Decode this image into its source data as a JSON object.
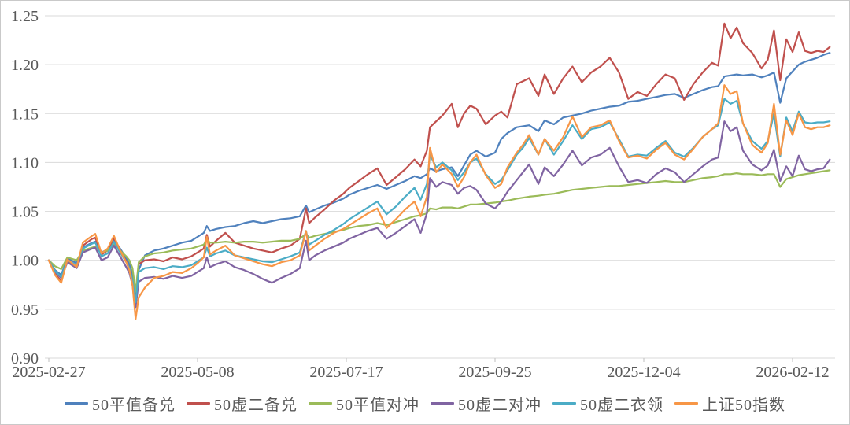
{
  "chart_data": {
    "type": "line",
    "title": "",
    "xlabel": "",
    "ylabel": "",
    "grid": true,
    "legend_position": "bottom",
    "ylim": [
      0.9,
      1.25
    ],
    "y_ticks": [
      "0.90",
      "0.95",
      "1.00",
      "1.05",
      "1.10",
      "1.15",
      "1.20",
      "1.25"
    ],
    "x_domain_days": [
      0,
      252
    ],
    "x_tick_days": [
      0,
      48,
      96,
      144,
      192,
      240
    ],
    "x_tick_labels": [
      "2025-02-27",
      "2025-05-08",
      "2025-07-17",
      "2025-09-25",
      "2025-12-04",
      "2026-02-12"
    ],
    "days": [
      0,
      2,
      4,
      6,
      9,
      11,
      14,
      15,
      17,
      19,
      21,
      23,
      25,
      26,
      27,
      28,
      29,
      31,
      34,
      37,
      40,
      43,
      46,
      48,
      50,
      51,
      52,
      54,
      57,
      60,
      63,
      66,
      69,
      72,
      75,
      78,
      81,
      83,
      84,
      86,
      89,
      92,
      95,
      97,
      100,
      103,
      106,
      109,
      112,
      115,
      118,
      120,
      122,
      123,
      125,
      127,
      130,
      132,
      134,
      136,
      138,
      141,
      144,
      146,
      148,
      151,
      153,
      155,
      158,
      160,
      163,
      166,
      169,
      172,
      175,
      178,
      181,
      184,
      187,
      190,
      193,
      196,
      199,
      202,
      205,
      208,
      211,
      214,
      216,
      218,
      220,
      222,
      224,
      227,
      230,
      232,
      234,
      236,
      238,
      240,
      242,
      244,
      246,
      248,
      250,
      252
    ],
    "series": [
      {
        "name": "50平值备兑",
        "color": "#4F81BD",
        "values": [
          1.0,
          0.99,
          0.985,
          1.002,
          0.997,
          1.013,
          1.018,
          1.019,
          1.008,
          1.011,
          1.021,
          1.012,
          1.002,
          0.996,
          0.985,
          0.962,
          0.99,
          1.005,
          1.01,
          1.012,
          1.015,
          1.018,
          1.02,
          1.024,
          1.028,
          1.035,
          1.03,
          1.032,
          1.034,
          1.035,
          1.038,
          1.04,
          1.038,
          1.04,
          1.042,
          1.043,
          1.045,
          1.056,
          1.049,
          1.052,
          1.056,
          1.059,
          1.063,
          1.067,
          1.071,
          1.074,
          1.077,
          1.073,
          1.077,
          1.081,
          1.086,
          1.084,
          1.088,
          1.094,
          1.091,
          1.093,
          1.095,
          1.086,
          1.097,
          1.108,
          1.112,
          1.106,
          1.11,
          1.124,
          1.13,
          1.136,
          1.137,
          1.138,
          1.132,
          1.143,
          1.139,
          1.146,
          1.148,
          1.15,
          1.153,
          1.155,
          1.157,
          1.158,
          1.162,
          1.163,
          1.165,
          1.167,
          1.169,
          1.17,
          1.166,
          1.17,
          1.174,
          1.177,
          1.178,
          1.188,
          1.189,
          1.19,
          1.189,
          1.19,
          1.187,
          1.189,
          1.192,
          1.161,
          1.186,
          1.193,
          1.2,
          1.203,
          1.205,
          1.207,
          1.21,
          1.212
        ]
      },
      {
        "name": "50虚二备兑",
        "color": "#C0504D",
        "values": [
          1.0,
          0.986,
          0.979,
          1.0,
          0.993,
          1.015,
          1.022,
          1.023,
          1.006,
          1.01,
          1.023,
          1.01,
          0.999,
          0.992,
          0.98,
          0.956,
          0.996,
          1.0,
          1.001,
          0.999,
          1.003,
          1.001,
          1.004,
          1.008,
          1.012,
          1.026,
          1.014,
          1.02,
          1.028,
          1.018,
          1.015,
          1.012,
          1.01,
          1.008,
          1.012,
          1.015,
          1.022,
          1.053,
          1.038,
          1.044,
          1.052,
          1.061,
          1.068,
          1.074,
          1.081,
          1.088,
          1.094,
          1.077,
          1.085,
          1.093,
          1.103,
          1.096,
          1.112,
          1.136,
          1.142,
          1.148,
          1.16,
          1.136,
          1.15,
          1.158,
          1.155,
          1.139,
          1.148,
          1.152,
          1.146,
          1.18,
          1.183,
          1.186,
          1.168,
          1.19,
          1.17,
          1.186,
          1.198,
          1.182,
          1.192,
          1.198,
          1.207,
          1.192,
          1.165,
          1.172,
          1.168,
          1.18,
          1.19,
          1.186,
          1.164,
          1.18,
          1.192,
          1.202,
          1.199,
          1.242,
          1.227,
          1.238,
          1.222,
          1.212,
          1.196,
          1.205,
          1.235,
          1.184,
          1.226,
          1.213,
          1.233,
          1.214,
          1.212,
          1.214,
          1.213,
          1.218
        ]
      },
      {
        "name": "50平值对冲",
        "color": "#9BBB59",
        "values": [
          1.0,
          0.994,
          0.991,
          1.003,
          1.0,
          1.01,
          1.013,
          1.014,
          1.008,
          1.01,
          1.016,
          1.01,
          1.004,
          1.0,
          0.992,
          0.968,
          0.998,
          1.004,
          1.007,
          1.008,
          1.01,
          1.011,
          1.012,
          1.014,
          1.016,
          1.021,
          1.018,
          1.018,
          1.019,
          1.018,
          1.019,
          1.019,
          1.018,
          1.019,
          1.02,
          1.02,
          1.022,
          1.027,
          1.023,
          1.025,
          1.027,
          1.029,
          1.031,
          1.033,
          1.035,
          1.036,
          1.038,
          1.036,
          1.039,
          1.042,
          1.045,
          1.046,
          1.048,
          1.053,
          1.052,
          1.054,
          1.054,
          1.053,
          1.055,
          1.057,
          1.057,
          1.058,
          1.059,
          1.06,
          1.061,
          1.063,
          1.064,
          1.065,
          1.066,
          1.067,
          1.068,
          1.07,
          1.072,
          1.073,
          1.074,
          1.075,
          1.076,
          1.076,
          1.077,
          1.078,
          1.079,
          1.08,
          1.081,
          1.08,
          1.08,
          1.082,
          1.084,
          1.085,
          1.086,
          1.088,
          1.088,
          1.089,
          1.088,
          1.088,
          1.087,
          1.088,
          1.088,
          1.075,
          1.083,
          1.085,
          1.087,
          1.088,
          1.089,
          1.09,
          1.091,
          1.092
        ]
      },
      {
        "name": "50虚二对冲",
        "color": "#8064A2",
        "values": [
          1.0,
          0.988,
          0.982,
          0.998,
          0.992,
          1.008,
          1.012,
          1.013,
          1.0,
          1.003,
          1.015,
          1.004,
          0.993,
          0.987,
          0.975,
          0.952,
          0.978,
          0.982,
          0.983,
          0.981,
          0.984,
          0.982,
          0.984,
          0.988,
          0.992,
          1.003,
          0.993,
          0.996,
          0.999,
          0.993,
          0.99,
          0.986,
          0.981,
          0.977,
          0.982,
          0.986,
          0.992,
          1.02,
          1.0,
          1.005,
          1.01,
          1.014,
          1.018,
          1.022,
          1.026,
          1.03,
          1.033,
          1.022,
          1.028,
          1.035,
          1.042,
          1.028,
          1.048,
          1.084,
          1.075,
          1.08,
          1.077,
          1.068,
          1.074,
          1.076,
          1.072,
          1.058,
          1.053,
          1.06,
          1.07,
          1.082,
          1.09,
          1.098,
          1.078,
          1.095,
          1.086,
          1.098,
          1.112,
          1.097,
          1.105,
          1.108,
          1.115,
          1.096,
          1.08,
          1.082,
          1.079,
          1.088,
          1.094,
          1.09,
          1.08,
          1.088,
          1.096,
          1.103,
          1.105,
          1.142,
          1.132,
          1.136,
          1.112,
          1.098,
          1.092,
          1.097,
          1.113,
          1.081,
          1.096,
          1.086,
          1.107,
          1.093,
          1.091,
          1.093,
          1.094,
          1.103
        ]
      },
      {
        "name": "50虚二衣领",
        "color": "#4BACC6",
        "values": [
          1.0,
          0.989,
          0.983,
          1.0,
          0.995,
          1.012,
          1.017,
          1.018,
          1.004,
          1.007,
          1.019,
          1.008,
          0.998,
          0.992,
          0.98,
          0.957,
          0.988,
          0.992,
          0.993,
          0.991,
          0.994,
          0.993,
          0.995,
          0.999,
          1.003,
          1.013,
          1.004,
          1.007,
          1.01,
          1.005,
          1.003,
          1.001,
          0.999,
          0.998,
          1.001,
          1.004,
          1.008,
          1.03,
          1.016,
          1.02,
          1.026,
          1.031,
          1.037,
          1.042,
          1.048,
          1.054,
          1.06,
          1.047,
          1.055,
          1.065,
          1.074,
          1.062,
          1.078,
          1.108,
          1.095,
          1.1,
          1.092,
          1.082,
          1.09,
          1.1,
          1.104,
          1.088,
          1.078,
          1.082,
          1.092,
          1.108,
          1.115,
          1.125,
          1.108,
          1.124,
          1.108,
          1.122,
          1.138,
          1.124,
          1.134,
          1.136,
          1.141,
          1.124,
          1.106,
          1.108,
          1.107,
          1.115,
          1.122,
          1.11,
          1.106,
          1.115,
          1.126,
          1.134,
          1.138,
          1.165,
          1.16,
          1.163,
          1.14,
          1.122,
          1.114,
          1.122,
          1.15,
          1.106,
          1.146,
          1.132,
          1.152,
          1.141,
          1.14,
          1.141,
          1.141,
          1.142
        ]
      },
      {
        "name": "上证50指数",
        "color": "#F79646",
        "values": [
          1.0,
          0.985,
          0.977,
          1.001,
          0.993,
          1.018,
          1.025,
          1.027,
          1.007,
          1.012,
          1.025,
          1.01,
          0.998,
          0.99,
          0.975,
          0.94,
          0.962,
          0.972,
          0.982,
          0.984,
          0.988,
          0.987,
          0.992,
          0.997,
          1.003,
          1.024,
          1.006,
          1.01,
          1.015,
          1.005,
          1.002,
          0.999,
          0.996,
          0.994,
          0.998,
          1.0,
          1.005,
          1.03,
          1.01,
          1.015,
          1.022,
          1.028,
          1.032,
          1.036,
          1.042,
          1.048,
          1.053,
          1.033,
          1.042,
          1.052,
          1.06,
          1.045,
          1.065,
          1.115,
          1.09,
          1.098,
          1.088,
          1.075,
          1.085,
          1.1,
          1.108,
          1.087,
          1.074,
          1.078,
          1.095,
          1.11,
          1.118,
          1.128,
          1.108,
          1.124,
          1.112,
          1.126,
          1.147,
          1.126,
          1.136,
          1.138,
          1.143,
          1.122,
          1.105,
          1.107,
          1.104,
          1.113,
          1.12,
          1.108,
          1.103,
          1.114,
          1.126,
          1.134,
          1.14,
          1.179,
          1.17,
          1.173,
          1.14,
          1.118,
          1.11,
          1.12,
          1.16,
          1.108,
          1.143,
          1.128,
          1.15,
          1.136,
          1.134,
          1.136,
          1.136,
          1.138
        ]
      }
    ]
  },
  "style": {
    "gridline_color": "#d9d9d9",
    "axis_line_color": "#bfbfbf",
    "tick_mark_color": "#bfbfbf",
    "text_color": "#595959",
    "background": "#ffffff",
    "border_color": "#c9c9c9"
  }
}
